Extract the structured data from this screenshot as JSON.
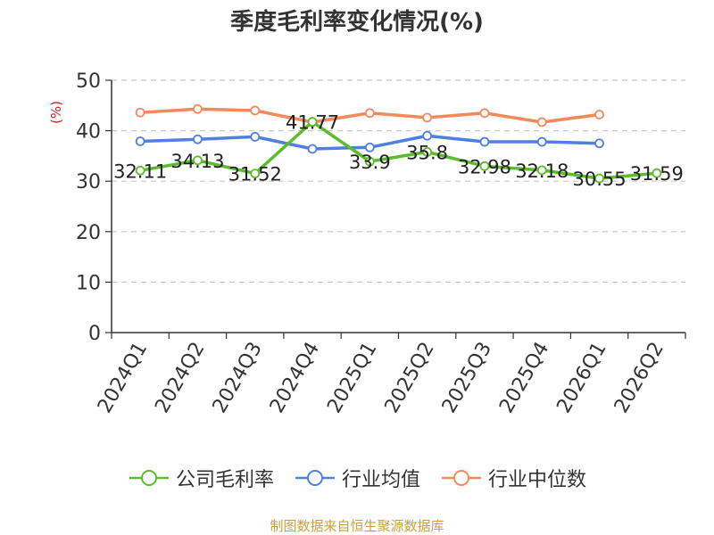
{
  "chart_data": {
    "type": "line",
    "title": "季度毛利率变化情况(%)",
    "ylabel": "(%)",
    "xlabel": "",
    "ylim": [
      0,
      50
    ],
    "y_ticks": [
      "0",
      "10",
      "20",
      "30",
      "40",
      "50"
    ],
    "categories": [
      "2024Q1",
      "2024Q2",
      "2024Q3",
      "2024Q4",
      "2025Q1",
      "2025Q2",
      "2025Q3",
      "2025Q4",
      "2026Q1",
      "2026Q2"
    ],
    "grid": true,
    "legend_position": "bottom",
    "series": [
      {
        "name": "公司毛利率",
        "color": "#5bbd2b",
        "values": [
          32.11,
          34.13,
          31.52,
          41.77,
          33.9,
          35.8,
          32.98,
          32.18,
          30.55,
          31.59
        ],
        "labels": [
          "32.11",
          "34.13",
          "31.52",
          "41.77",
          "33.9",
          "35.8",
          "32.98",
          "32.18",
          "30.55",
          "31.59"
        ]
      },
      {
        "name": "行业均值",
        "color": "#4f7fe0",
        "values": [
          37.9,
          38.3,
          38.8,
          36.4,
          36.7,
          39.0,
          37.8,
          37.8,
          37.5,
          null
        ]
      },
      {
        "name": "行业中位数",
        "color": "#f4895a",
        "values": [
          43.6,
          44.3,
          44.0,
          41.7,
          43.5,
          42.6,
          43.5,
          41.7,
          43.2,
          null
        ]
      }
    ]
  },
  "source_note": "制图数据来自恒生聚源数据库"
}
